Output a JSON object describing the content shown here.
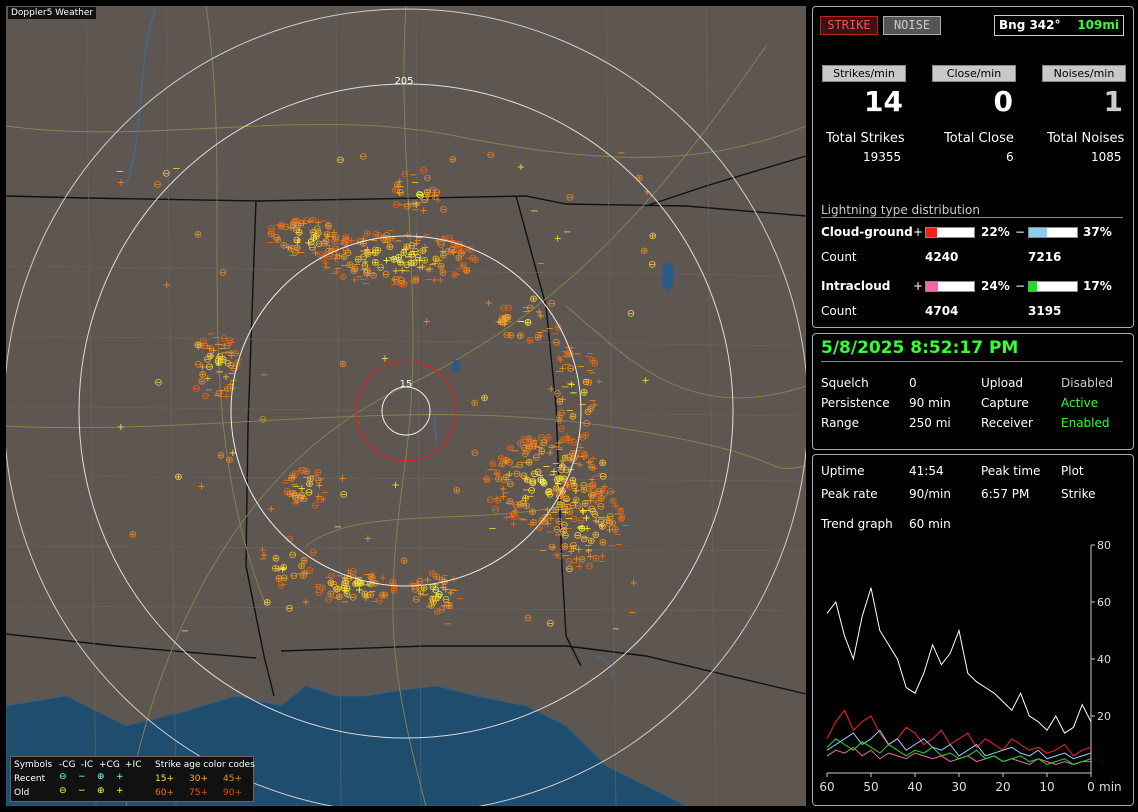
{
  "map": {
    "title": "Doppler5 Weather",
    "range_labels": [
      "205",
      "15"
    ],
    "legend": {
      "symbols_label": "Symbols",
      "cols": [
        "-CG",
        "-IC",
        "+CG",
        "+IC"
      ],
      "rows": [
        "Recent",
        "Old"
      ],
      "age_title": "Strike age color codes",
      "age_recent": [
        "15+",
        "30+",
        "45+"
      ],
      "age_old": [
        "60+",
        "75+",
        "90+"
      ]
    }
  },
  "stats": {
    "strike_btn": "STRIKE",
    "noise_btn": "NOISE",
    "bearing_label": "Bng 342°",
    "bearing_dist": "109mi",
    "headers": [
      "Strikes/min",
      "Close/min",
      "Noises/min"
    ],
    "rates": [
      "14",
      "0",
      "1"
    ],
    "total_labels": [
      "Total Strikes",
      "Total Close",
      "Total Noises"
    ],
    "totals": [
      "19355",
      "6",
      "1085"
    ],
    "dist_title": "Lightning type distribution",
    "cg_label": "Cloud-ground",
    "cg_pos_pct": "22%",
    "cg_neg_pct": "37%",
    "cg_pos_frac": 0.22,
    "cg_neg_frac": 0.37,
    "count_label": "Count",
    "cg_pos_count": "4240",
    "cg_neg_count": "7216",
    "ic_label": "Intracloud",
    "ic_pos_pct": "24%",
    "ic_neg_pct": "17%",
    "ic_pos_frac": 0.24,
    "ic_neg_frac": 0.17,
    "ic_pos_count": "4704",
    "ic_neg_count": "3195",
    "plus": "+",
    "minus": "−",
    "colors": {
      "cg_pos": "#ff1a1a",
      "cg_neg": "#8ecbf0",
      "ic_pos": "#ee6aa7",
      "ic_neg": "#22dd22"
    }
  },
  "status": {
    "datetime": "5/8/2025 8:52:17 PM",
    "rows": [
      [
        "Squelch",
        "0",
        "Upload",
        "Disabled"
      ],
      [
        "Persistence",
        "90 min",
        "Capture",
        "Active"
      ],
      [
        "Range",
        "250 mi",
        "Receiver",
        "Enabled"
      ]
    ]
  },
  "trend": {
    "uptime_label": "Uptime",
    "uptime": "41:54",
    "peak_time_label": "Peak time",
    "peak_time": "6:57 PM",
    "plot_label": "Plot",
    "plot": "Strike",
    "peak_rate_label": "Peak rate",
    "peak_rate": "90/min",
    "trend_label": "Trend graph",
    "trend": "60 min",
    "y_ticks": [
      "80",
      "60",
      "40",
      "20"
    ],
    "x_ticks": [
      "60",
      "50",
      "40",
      "30",
      "20",
      "10",
      "0"
    ],
    "x_unit": "min"
  },
  "chart_data": {
    "type": "line",
    "xlabel": "min",
    "xlim": [
      60,
      0
    ],
    "ylim": [
      0,
      80
    ],
    "x": [
      60,
      58,
      56,
      54,
      52,
      50,
      48,
      46,
      44,
      42,
      40,
      38,
      36,
      34,
      32,
      30,
      28,
      26,
      24,
      22,
      20,
      18,
      16,
      14,
      12,
      10,
      8,
      6,
      4,
      2,
      0
    ],
    "series": [
      {
        "color": "#ffffff",
        "values": [
          56,
          60,
          48,
          40,
          55,
          65,
          50,
          45,
          40,
          30,
          28,
          35,
          45,
          38,
          42,
          50,
          35,
          32,
          30,
          28,
          25,
          22,
          28,
          20,
          18,
          15,
          20,
          14,
          16,
          24,
          18
        ]
      },
      {
        "color": "#ff2020",
        "values": [
          12,
          18,
          22,
          15,
          18,
          20,
          14,
          10,
          12,
          16,
          14,
          10,
          12,
          15,
          10,
          12,
          14,
          9,
          12,
          10,
          8,
          12,
          10,
          8,
          9,
          7,
          8,
          10,
          6,
          8,
          9
        ]
      },
      {
        "color": "#9ad0ff",
        "values": [
          8,
          10,
          12,
          14,
          10,
          12,
          15,
          10,
          12,
          8,
          10,
          12,
          9,
          8,
          10,
          6,
          8,
          10,
          6,
          7,
          8,
          9,
          7,
          6,
          8,
          5,
          6,
          7,
          5,
          6,
          7
        ]
      },
      {
        "color": "#ee6aa7",
        "values": [
          6,
          8,
          7,
          9,
          6,
          8,
          5,
          7,
          6,
          5,
          7,
          6,
          5,
          6,
          4,
          5,
          6,
          4,
          5,
          6,
          4,
          5,
          4,
          3,
          5,
          4,
          3,
          4,
          3,
          4,
          4
        ]
      },
      {
        "color": "#22dd22",
        "values": [
          9,
          12,
          10,
          8,
          11,
          9,
          7,
          10,
          8,
          6,
          8,
          7,
          9,
          6,
          7,
          5,
          6,
          8,
          5,
          6,
          4,
          5,
          6,
          4,
          5,
          3,
          4,
          5,
          3,
          4,
          5
        ]
      }
    ]
  }
}
